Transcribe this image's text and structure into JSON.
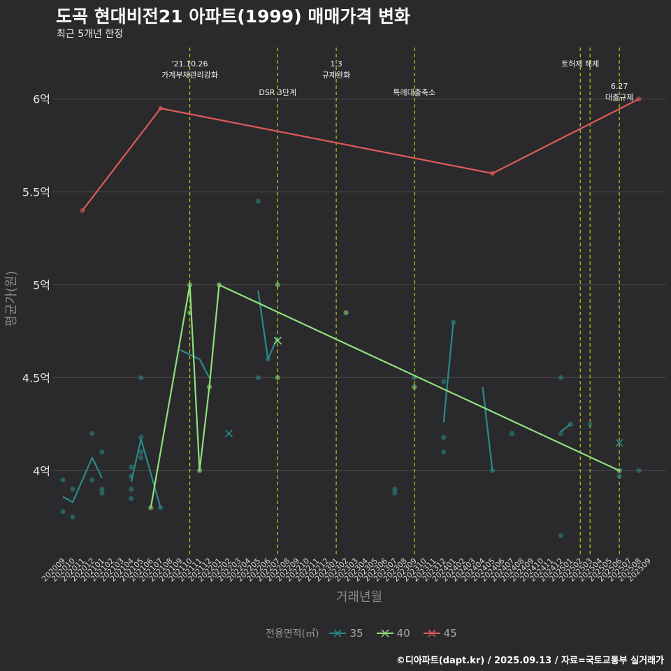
{
  "title": "도곡 현대비전21 아파트(1999) 매매가격 변화",
  "subtitle": "최근 5개년 한정",
  "caption": "©디아파트(dapt.kr) / 2025.09.13 / 자료=국토교통부 실거래가",
  "colors": {
    "background": "#2a2a2c",
    "grid": "#4a4a4d",
    "policy_line": "#c8c81e",
    "s35": "#2a8a8a",
    "s40": "#8ee07a",
    "s45": "#e0595a"
  },
  "chart_data": {
    "type": "line",
    "title": "도곡 현대비전21 아파트(1999) 매매가격 변화",
    "xlabel": "거래년월",
    "ylabel": "평균가(원)",
    "ylim": [
      3.55,
      6.3
    ],
    "y_ticks": [
      {
        "value": 4.0,
        "label": "4억"
      },
      {
        "value": 4.5,
        "label": "4.5억"
      },
      {
        "value": 5.0,
        "label": "5억"
      },
      {
        "value": 5.5,
        "label": "5.5억"
      },
      {
        "value": 6.0,
        "label": "6억"
      }
    ],
    "months": [
      "202009",
      "202010",
      "202011",
      "202012",
      "202101",
      "202102",
      "202103",
      "202104",
      "202105",
      "202106",
      "202107",
      "202108",
      "202109",
      "202110",
      "202111",
      "202112",
      "202201",
      "202202",
      "202203",
      "202204",
      "202205",
      "202206",
      "202207",
      "202208",
      "202209",
      "202210",
      "202211",
      "202212",
      "202301",
      "202302",
      "202303",
      "202304",
      "202305",
      "202306",
      "202307",
      "202308",
      "202309",
      "202310",
      "202311",
      "202312",
      "202401",
      "202402",
      "202403",
      "202404",
      "202405",
      "202406",
      "202407",
      "202408",
      "202409",
      "202410",
      "202411",
      "202412",
      "202501",
      "202502",
      "202503",
      "202504",
      "202505",
      "202506",
      "202507",
      "202508",
      "202509"
    ],
    "policy_events": [
      {
        "month": "202110",
        "label": "'21.10.26\n가계부채관리강화",
        "level": "high"
      },
      {
        "month": "202207",
        "label": "DSR 3단계",
        "level": "low"
      },
      {
        "month": "202301",
        "label": "1.3\n규제완화",
        "level": "high"
      },
      {
        "month": "202309",
        "label": "특례대출축소",
        "level": "low"
      },
      {
        "month": "202502",
        "label": "토허제 해제",
        "level": "high"
      },
      {
        "month": "202503",
        "label": "",
        "level": "none"
      },
      {
        "month": "202506",
        "label": "6.27\n대출규제",
        "level": "mid"
      }
    ],
    "series": [
      {
        "name": "35",
        "color": "#2a8a8a",
        "line_segments": [
          [
            [
              "202009",
              3.86
            ],
            [
              "202010",
              3.83
            ],
            [
              "202012",
              4.07
            ],
            [
              "202101",
              3.96
            ]
          ],
          [
            [
              "202104",
              3.94
            ],
            [
              "202105",
              4.17
            ],
            [
              "202107",
              3.8
            ]
          ],
          [
            [
              "202109",
              4.65
            ],
            [
              "202111",
              4.6
            ],
            [
              "202112",
              4.5
            ]
          ],
          [
            [
              "202205",
              4.97
            ],
            [
              "202206",
              4.6
            ],
            [
              "202207",
              4.72
            ]
          ],
          [
            [
              "202312",
              4.26
            ],
            [
              "202401",
              4.8
            ]
          ],
          [
            [
              "202404",
              4.45
            ],
            [
              "202405",
              4.0
            ]
          ],
          [
            [
              "202412",
              4.21
            ],
            [
              "202501",
              4.25
            ]
          ]
        ],
        "points": [
          [
            "202009",
            3.95
          ],
          [
            "202009",
            3.78
          ],
          [
            "202010",
            3.9
          ],
          [
            "202010",
            3.75
          ],
          [
            "202012",
            4.2
          ],
          [
            "202012",
            3.95
          ],
          [
            "202101",
            4.1
          ],
          [
            "202101",
            3.88
          ],
          [
            "202101",
            3.9
          ],
          [
            "202104",
            3.9
          ],
          [
            "202104",
            4.02
          ],
          [
            "202104",
            3.85
          ],
          [
            "202104",
            3.97
          ],
          [
            "202105",
            4.5
          ],
          [
            "202105",
            4.18
          ],
          [
            "202105",
            4.07
          ],
          [
            "202105",
            4.1
          ],
          [
            "202107",
            3.8
          ],
          [
            "202205",
            5.45
          ],
          [
            "202205",
            4.5
          ],
          [
            "202206",
            4.6
          ],
          [
            "202307",
            3.9
          ],
          [
            "202307",
            3.88
          ],
          [
            "202309",
            4.5
          ],
          [
            "202312",
            4.48
          ],
          [
            "202312",
            4.18
          ],
          [
            "202312",
            4.1
          ],
          [
            "202401",
            4.8
          ],
          [
            "202405",
            4.0
          ],
          [
            "202407",
            4.2
          ],
          [
            "202412",
            4.5
          ],
          [
            "202412",
            4.2
          ],
          [
            "202412",
            3.65
          ],
          [
            "202501",
            4.25
          ],
          [
            "202503",
            4.25
          ],
          [
            "202506",
            3.97
          ],
          [
            "202508",
            4.0
          ]
        ],
        "x_marks": [
          [
            "202202",
            4.2
          ],
          [
            "202506",
            4.15
          ]
        ]
      },
      {
        "name": "40",
        "color": "#8ee07a",
        "line_segments": [
          [
            [
              "202106",
              3.8
            ],
            [
              "202110",
              5.0
            ],
            [
              "202111",
              4.0
            ],
            [
              "202112",
              4.45
            ],
            [
              "202201",
              5.0
            ],
            [
              "202506",
              4.0
            ]
          ]
        ],
        "points": [
          [
            "202106",
            3.8
          ],
          [
            "202110",
            5.0
          ],
          [
            "202110",
            4.85
          ],
          [
            "202111",
            4.0
          ],
          [
            "202112",
            4.45
          ],
          [
            "202201",
            5.0
          ],
          [
            "202207",
            5.0
          ],
          [
            "202207",
            4.5
          ],
          [
            "202302",
            4.85
          ],
          [
            "202309",
            4.45
          ],
          [
            "202506",
            4.0
          ]
        ],
        "x_marks": [
          [
            "202207",
            4.7
          ]
        ]
      },
      {
        "name": "45",
        "color": "#e0595a",
        "line_segments": [
          [
            [
              "202011",
              5.4
            ],
            [
              "202107",
              5.95
            ],
            [
              "202405",
              5.6
            ],
            [
              "202508",
              6.0
            ]
          ]
        ],
        "points": [
          [
            "202011",
            5.4
          ],
          [
            "202107",
            5.95
          ],
          [
            "202405",
            5.6
          ],
          [
            "202508",
            6.0
          ]
        ],
        "x_marks": []
      }
    ],
    "legend": {
      "title": "전용면적(㎡)",
      "position": "bottom"
    }
  }
}
